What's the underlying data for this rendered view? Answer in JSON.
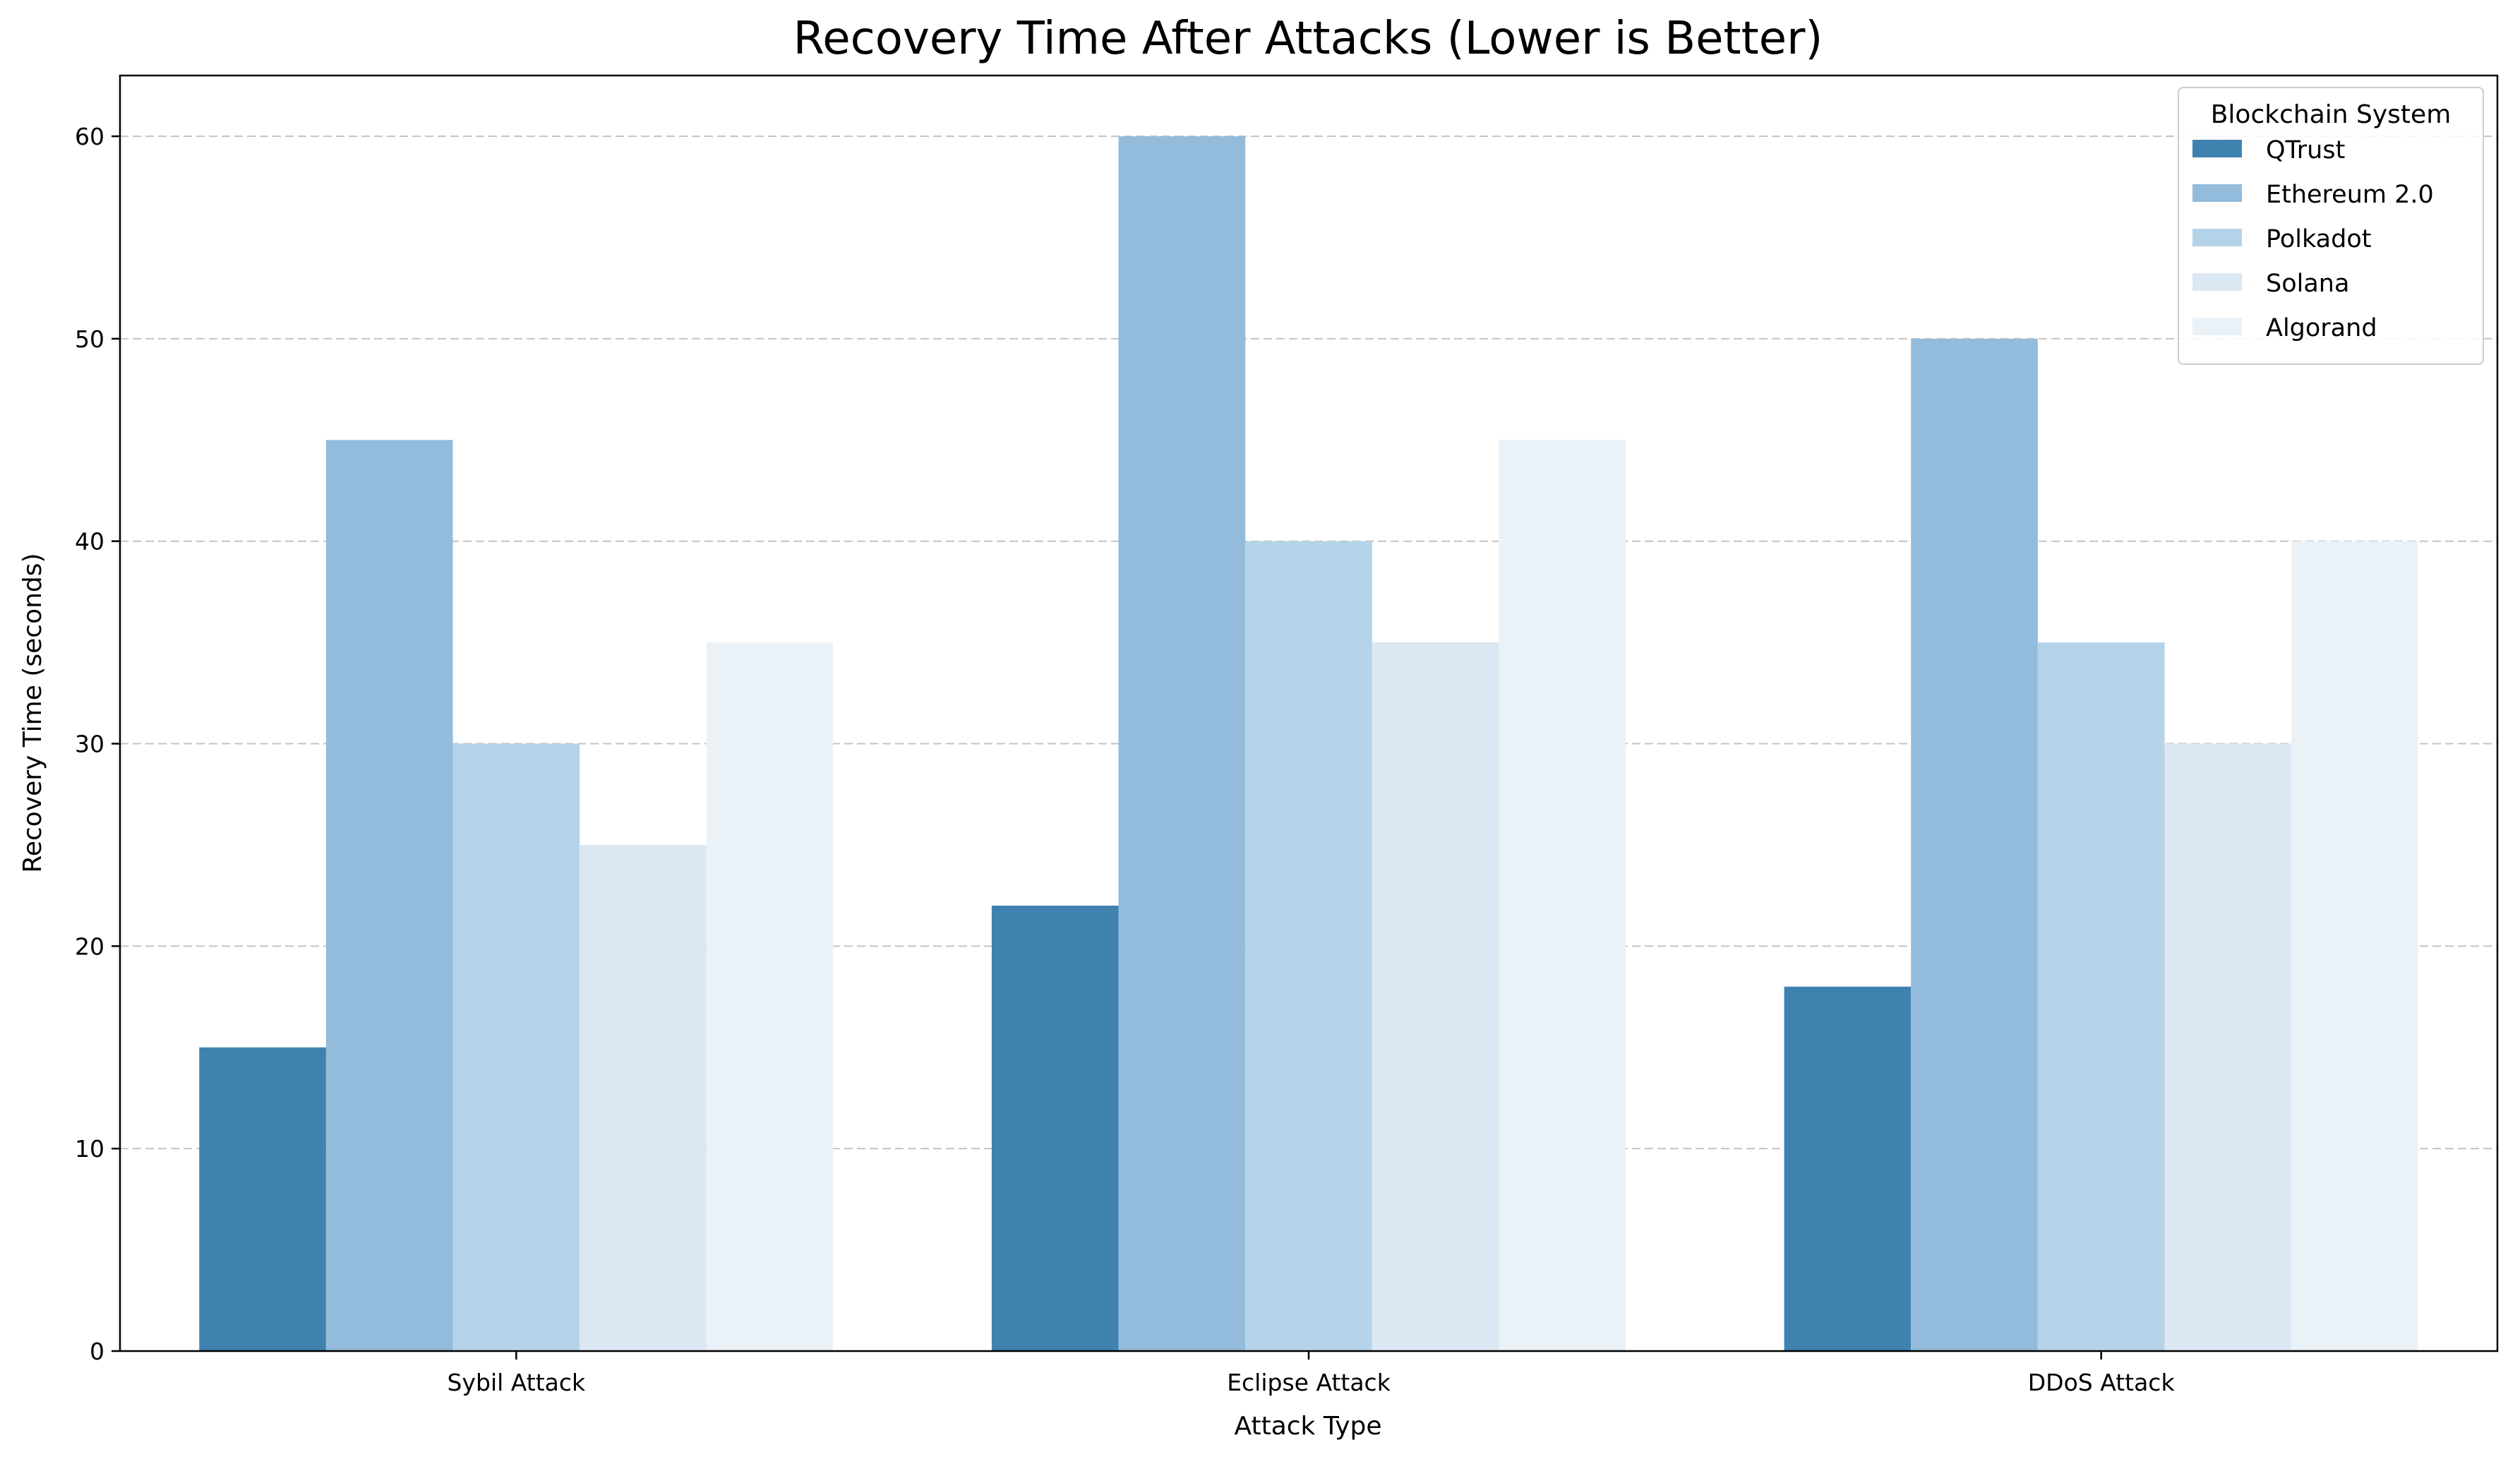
{
  "chart_data": {
    "type": "bar",
    "title": "Recovery Time After Attacks (Lower is Better)",
    "xlabel": "Attack Type",
    "ylabel": "Recovery Time (seconds)",
    "categories": [
      "Sybil Attack",
      "Eclipse Attack",
      "DDoS Attack"
    ],
    "ylim": [
      0,
      63
    ],
    "yticks": [
      0,
      10,
      20,
      30,
      40,
      50,
      60
    ],
    "grid": "horizontal, dashed",
    "legend": {
      "title": "Blockchain System",
      "placement": "top-right"
    },
    "series": [
      {
        "name": "QTrust",
        "color": "#3f82b0",
        "values": [
          15,
          22,
          18
        ]
      },
      {
        "name": "Ethereum 2.0",
        "color": "#93bbdb",
        "values": [
          45,
          60,
          50
        ]
      },
      {
        "name": "Polkadot",
        "color": "#b5d3e8",
        "values": [
          30,
          40,
          35
        ]
      },
      {
        "name": "Solana",
        "color": "#dbe8f3",
        "values": [
          25,
          35,
          30
        ]
      },
      {
        "name": "Algorand",
        "color": "#ebf2f7",
        "values": [
          35,
          45,
          40
        ]
      }
    ]
  }
}
